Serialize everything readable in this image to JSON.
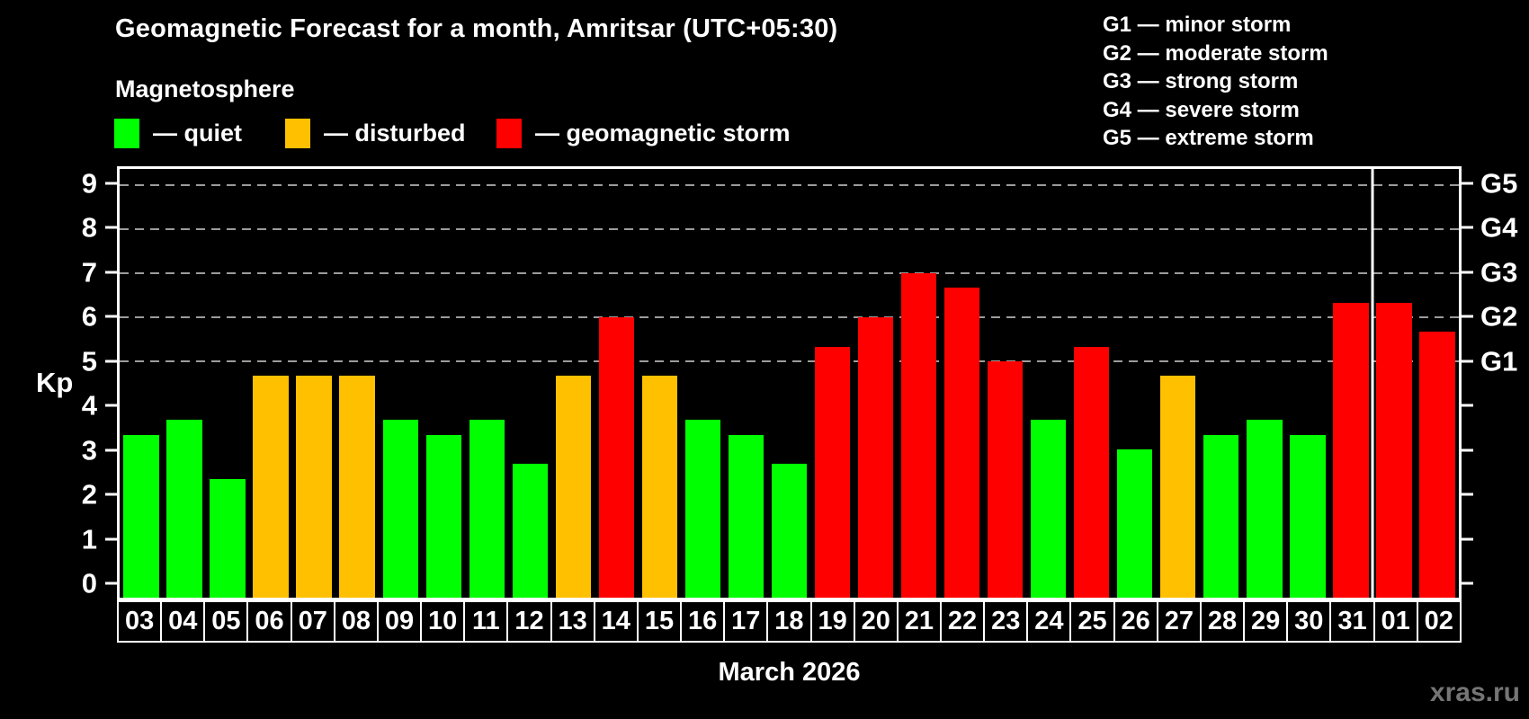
{
  "header": {
    "subtitle": "Magnetosphere"
  },
  "legend": {
    "items": [
      {
        "key": "quiet",
        "label": "— quiet",
        "color": "#00ff00"
      },
      {
        "key": "disturbed",
        "label": "— disturbed",
        "color": "#ffc000"
      },
      {
        "key": "storm",
        "label": "— geomagnetic storm",
        "color": "#ff0000"
      }
    ]
  },
  "g_legend": {
    "items": [
      "G1 — minor storm",
      "G2 — moderate storm",
      "G3 — strong storm",
      "G4 — severe storm",
      "G5 — extreme storm"
    ]
  },
  "footer": {
    "watermark": "xras.ru"
  },
  "chart_data": {
    "type": "bar",
    "title": "Geomagnetic Forecast for a month, Amritsar (UTC+05:30)",
    "xlabel": "March 2026",
    "ylabel": "Kp",
    "ylim": [
      0,
      9
    ],
    "axis_padding": 0.375,
    "y_ticks": [
      0,
      1,
      2,
      3,
      4,
      5,
      6,
      7,
      8,
      9
    ],
    "gridlines_at": [
      5,
      6,
      7,
      8,
      9
    ],
    "grid_style": "dashed-gray-horizontal",
    "legend_position": "top",
    "right_axis_labels": [
      {
        "kp": 5,
        "label": "G1"
      },
      {
        "kp": 6,
        "label": "G2"
      },
      {
        "kp": 7,
        "label": "G3"
      },
      {
        "kp": 8,
        "label": "G4"
      },
      {
        "kp": 9,
        "label": "G5"
      }
    ],
    "categories": [
      "03",
      "04",
      "05",
      "06",
      "07",
      "08",
      "09",
      "10",
      "11",
      "12",
      "13",
      "14",
      "15",
      "16",
      "17",
      "18",
      "19",
      "20",
      "21",
      "22",
      "23",
      "24",
      "25",
      "26",
      "27",
      "28",
      "29",
      "30",
      "31",
      "01",
      "02"
    ],
    "values": [
      3.33,
      3.67,
      2.33,
      4.67,
      4.67,
      4.67,
      3.67,
      3.33,
      3.67,
      2.67,
      4.67,
      6,
      4.67,
      3.67,
      3.33,
      2.67,
      5.33,
      6,
      7,
      6.67,
      5,
      3.67,
      5.33,
      3,
      4.67,
      3.33,
      3.67,
      3.33,
      6.33,
      6.33,
      5.67
    ],
    "bands": [
      "quiet",
      "quiet",
      "quiet",
      "disturbed",
      "disturbed",
      "disturbed",
      "quiet",
      "quiet",
      "quiet",
      "quiet",
      "disturbed",
      "storm",
      "disturbed",
      "quiet",
      "quiet",
      "quiet",
      "storm",
      "storm",
      "storm",
      "storm",
      "storm",
      "quiet",
      "storm",
      "quiet",
      "disturbed",
      "quiet",
      "quiet",
      "quiet",
      "storm",
      "storm",
      "storm"
    ],
    "colors": {
      "quiet": "#00ff00",
      "disturbed": "#ffc000",
      "storm": "#ff0000"
    },
    "separator_after_index": 28
  }
}
